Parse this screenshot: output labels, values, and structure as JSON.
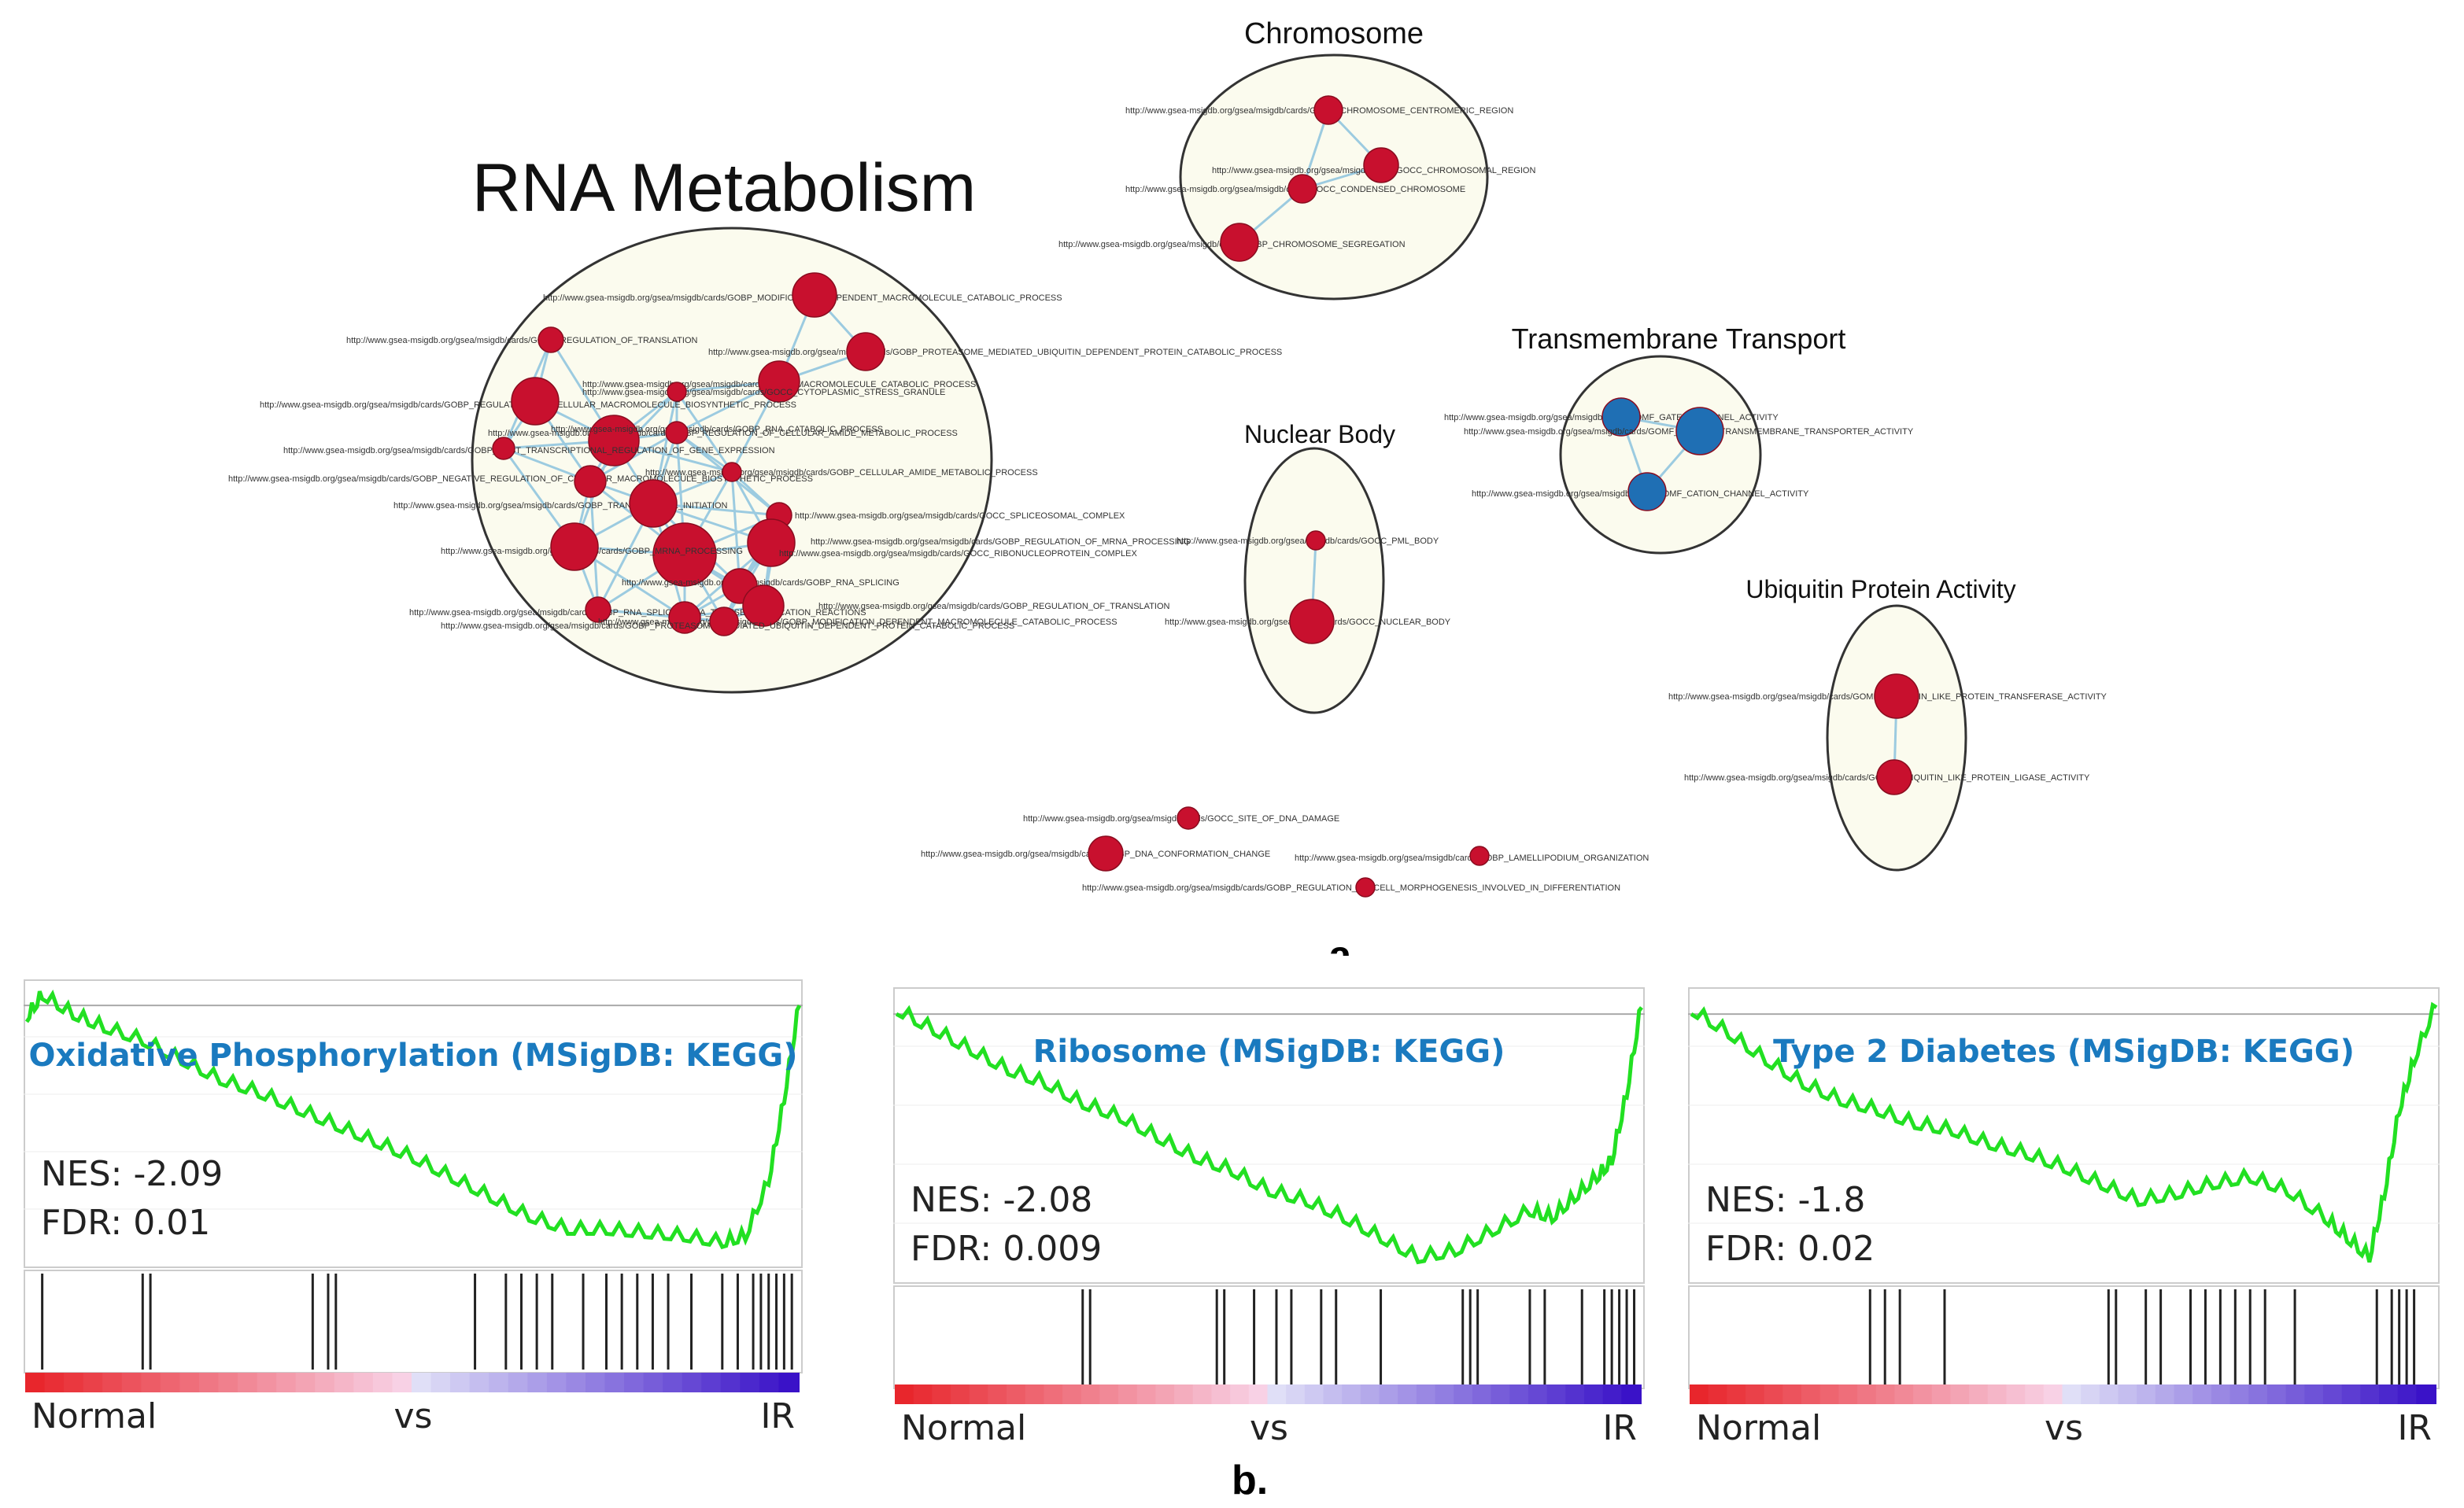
{
  "figure": {
    "panel_a_label": "a.",
    "panel_b_label": "b."
  },
  "network": {
    "clusters": [
      {
        "id": "rna",
        "title": "RNA Metabolism",
        "node_color": "#c8102e",
        "node_labels": [
          "http://www.gsea-msigdb.org/gsea/msigdb/cards/GOBP_MODIFICATION_DEPENDENT_MACROMOLECULE_CATABOLIC_PROCESS",
          "http://www.gsea-msigdb.org/gsea/msigdb/cards/GOBP_REGULATION_OF_TRANSLATION",
          "http://www.gsea-msigdb.org/gsea/msigdb/cards/GOBP_PROTEASOME_MEDIATED_UBIQUITIN_DEPENDENT_PROTEIN_CATABOLIC_PROCESS",
          "http://www.gsea-msigdb.org/gsea/msigdb/cards/GOBP_MACROMOLECULE_CATABOLIC_PROCESS",
          "http://www.gsea-msigdb.org/gsea/msigdb/cards/GOCC_CYTOPLASMIC_STRESS_GRANULE",
          "http://www.gsea-msigdb.org/gsea/msigdb/cards/GOBP_REGULATION_OF_CELLULAR_MACROMOLECULE_BIOSYNTHETIC_PROCESS",
          "http://www.gsea-msigdb.org/gsea/msigdb/cards/GOBP_REGULATION_OF_CELLULAR_AMIDE_METABOLIC_PROCESS",
          "http://www.gsea-msigdb.org/gsea/msigdb/cards/GOBP_RNA_CATABOLIC_PROCESS",
          "http://www.gsea-msigdb.org/gsea/msigdb/cards/GOBP_POST_TRANSCRIPTIONAL_REGULATION_OF_GENE_EXPRESSION",
          "http://www.gsea-msigdb.org/gsea/msigdb/cards/GOBP_NEGATIVE_REGULATION_OF_CELLULAR_MACROMOLECULE_BIOSYNTHETIC_PROCESS",
          "http://www.gsea-msigdb.org/gsea/msigdb/cards/GOBP_CELLULAR_AMIDE_METABOLIC_PROCESS",
          "http://www.gsea-msigdb.org/gsea/msigdb/cards/GOBP_TRANSLATIONAL_INITIATION",
          "http://www.gsea-msigdb.org/gsea/msigdb/cards/GOCC_SPLICEOSOMAL_COMPLEX",
          "http://www.gsea-msigdb.org/gsea/msigdb/cards/GOBP_REGULATION_OF_MRNA_PROCESSING",
          "http://www.gsea-msigdb.org/gsea/msigdb/cards/GOCC_RIBONUCLEOPROTEIN_COMPLEX",
          "http://www.gsea-msigdb.org/gsea/msigdb/cards/GOBP_MRNA_PROCESSING",
          "http://www.gsea-msigdb.org/gsea/msigdb/cards/GOBP_RNA_SPLICING",
          "http://www.gsea-msigdb.org/gsea/msigdb/cards/GOBP_RNA_SPLICING_VIA_TRANSESTERIFICATION_REACTIONS"
        ]
      },
      {
        "id": "chromosome",
        "title": "Chromosome",
        "node_color": "#c8102e",
        "node_labels": [
          "http://www.gsea-msigdb.org/gsea/msigdb/cards/GOCC_CHROMOSOME_CENTROMERIC_REGION",
          "http://www.gsea-msigdb.org/gsea/msigdb/cards/GOCC_CHROMOSOMAL_REGION",
          "http://www.gsea-msigdb.org/gsea/msigdb/cards/GOCC_CONDENSED_CHROMOSOME",
          "http://www.gsea-msigdb.org/gsea/msigdb/cards/GOBP_CHROMOSOME_SEGREGATION"
        ]
      },
      {
        "id": "transmembrane",
        "title": "Transmembrane Transport",
        "node_color": "#1f6fb4",
        "node_labels": [
          "http://www.gsea-msigdb.org/gsea/msigdb/cards/GOMF_GATED_CHANNEL_ACTIVITY",
          "http://www.gsea-msigdb.org/gsea/msigdb/cards/GOMF_PASSIVE_TRANSMEMBRANE_TRANSPORTER_ACTIVITY",
          "http://www.gsea-msigdb.org/gsea/msigdb/cards/GOMF_CATION_CHANNEL_ACTIVITY"
        ]
      },
      {
        "id": "nuclear",
        "title": "Nuclear Body",
        "node_color": "#c8102e",
        "node_labels": [
          "http://www.gsea-msigdb.org/gsea/msigdb/cards/GOCC_PML_BODY",
          "http://www.gsea-msigdb.org/gsea/msigdb/cards/GOCC_NUCLEAR_BODY"
        ]
      },
      {
        "id": "ubiquitin",
        "title": "Ubiquitin Protein Activity",
        "node_color": "#c8102e",
        "node_labels": [
          "http://www.gsea-msigdb.org/gsea/msigdb/cards/GOMF_UBIQUITIN_LIKE_PROTEIN_TRANSFERASE_ACTIVITY",
          "http://www.gsea-msigdb.org/gsea/msigdb/cards/GOMF_UBIQUITIN_LIKE_PROTEIN_LIGASE_ACTIVITY"
        ]
      }
    ],
    "singletons": [
      "http://www.gsea-msigdb.org/gsea/msigdb/cards/GOCC_SITE_OF_DNA_DAMAGE",
      "http://www.gsea-msigdb.org/gsea/msigdb/cards/GOBP_DNA_CONFORMATION_CHANGE",
      "http://www.gsea-msigdb.org/gsea/msigdb/cards/GOBP_LAMELLIPODIUM_ORGANIZATION",
      "http://www.gsea-msigdb.org/gsea/msigdb/cards/GOBP_REGULATION_OF_CELL_MORPHOGENESIS_INVOLVED_IN_DIFFERENTIATION"
    ]
  },
  "gsea_colors": {
    "curve": "#22e022",
    "title": "#1a7abf",
    "hit": "#222222",
    "normal": "#e8262c",
    "ir": "#3a12c8"
  },
  "chart_data": [
    {
      "type": "line",
      "title": "Oxidative Phosphorylation (MSigDB: KEGG)",
      "nes": "NES: -2.09",
      "fdr": "FDR: 0.01",
      "xlabel_left": "Normal",
      "xlabel_mid": "vs",
      "xlabel_right": "IR",
      "ylim": [
        -0.8,
        0.08
      ],
      "x": [
        0,
        0.02,
        0.06,
        0.1,
        0.15,
        0.2,
        0.25,
        0.3,
        0.35,
        0.4,
        0.45,
        0.5,
        0.55,
        0.6,
        0.65,
        0.7,
        0.75,
        0.8,
        0.85,
        0.9,
        0.93,
        0.96,
        0.98,
        1.0
      ],
      "y": [
        -0.05,
        0.02,
        -0.04,
        -0.08,
        -0.12,
        -0.18,
        -0.24,
        -0.28,
        -0.33,
        -0.38,
        -0.43,
        -0.48,
        -0.54,
        -0.6,
        -0.66,
        -0.7,
        -0.7,
        -0.71,
        -0.72,
        -0.74,
        -0.72,
        -0.55,
        -0.3,
        0.0
      ],
      "hits": [
        0.02,
        0.15,
        0.16,
        0.37,
        0.39,
        0.4,
        0.58,
        0.62,
        0.64,
        0.66,
        0.68,
        0.72,
        0.75,
        0.77,
        0.79,
        0.81,
        0.83,
        0.86,
        0.9,
        0.92,
        0.94,
        0.95,
        0.96,
        0.97,
        0.98,
        0.99
      ]
    },
    {
      "type": "line",
      "title": "Ribosome (MSigDB: KEGG)",
      "nes": "NES: -2.08",
      "fdr": "FDR: 0.009",
      "xlabel_left": "Normal",
      "xlabel_mid": "vs",
      "xlabel_right": "IR",
      "ylim": [
        -0.8,
        0.08
      ],
      "x": [
        0,
        0.05,
        0.1,
        0.15,
        0.2,
        0.25,
        0.3,
        0.35,
        0.4,
        0.45,
        0.5,
        0.55,
        0.6,
        0.65,
        0.7,
        0.75,
        0.8,
        0.85,
        0.88,
        0.91,
        0.94,
        0.96,
        0.98,
        1.0
      ],
      "y": [
        0.0,
        -0.06,
        -0.12,
        -0.18,
        -0.22,
        -0.28,
        -0.32,
        -0.38,
        -0.44,
        -0.48,
        -0.54,
        -0.57,
        -0.62,
        -0.68,
        -0.74,
        -0.72,
        -0.66,
        -0.6,
        -0.62,
        -0.56,
        -0.5,
        -0.45,
        -0.25,
        0.02
      ],
      "hits": [
        0.25,
        0.26,
        0.43,
        0.44,
        0.48,
        0.51,
        0.53,
        0.57,
        0.59,
        0.65,
        0.76,
        0.77,
        0.78,
        0.85,
        0.87,
        0.92,
        0.95,
        0.96,
        0.97,
        0.98,
        0.99
      ]
    },
    {
      "type": "line",
      "title": "Type 2 Diabetes (MSigDB: KEGG)",
      "nes": "NES: -1.8",
      "fdr": "FDR: 0.02",
      "xlabel_left": "Normal",
      "xlabel_mid": "vs",
      "xlabel_right": "IR",
      "ylim": [
        -0.8,
        0.08
      ],
      "x": [
        0,
        0.05,
        0.1,
        0.15,
        0.2,
        0.25,
        0.3,
        0.35,
        0.4,
        0.45,
        0.5,
        0.55,
        0.6,
        0.65,
        0.7,
        0.75,
        0.8,
        0.85,
        0.88,
        0.91,
        0.93,
        0.95,
        0.97,
        1.0
      ],
      "y": [
        0.0,
        -0.07,
        -0.15,
        -0.22,
        -0.27,
        -0.3,
        -0.34,
        -0.36,
        -0.4,
        -0.43,
        -0.47,
        -0.52,
        -0.57,
        -0.55,
        -0.52,
        -0.5,
        -0.54,
        -0.62,
        -0.68,
        -0.74,
        -0.55,
        -0.3,
        -0.15,
        0.02
      ],
      "hits": [
        0.24,
        0.26,
        0.28,
        0.34,
        0.56,
        0.57,
        0.61,
        0.63,
        0.67,
        0.69,
        0.71,
        0.73,
        0.75,
        0.77,
        0.81,
        0.92,
        0.94,
        0.95,
        0.96,
        0.97
      ]
    }
  ]
}
